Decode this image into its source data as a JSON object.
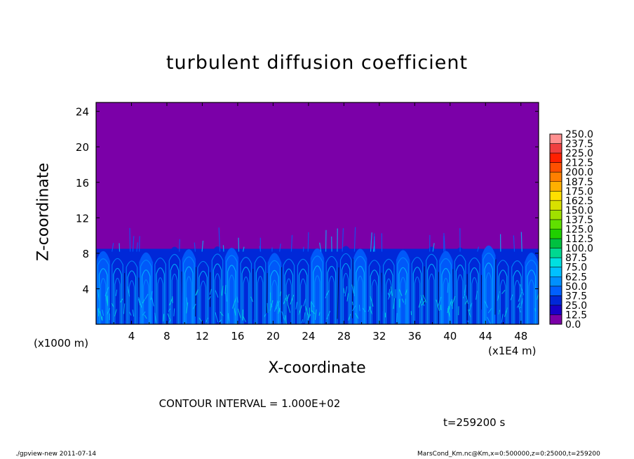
{
  "chart_data": {
    "type": "heatmap",
    "title": "turbulent diffusion coefficient",
    "xlabel": "X-coordinate",
    "ylabel": "Z-coordinate",
    "x_unit_left": "(x1000 m)",
    "x_unit_right": "(x1E4 m)",
    "xlim": [
      0,
      50
    ],
    "ylim": [
      0,
      25
    ],
    "x_ticks": [
      4,
      8,
      12,
      16,
      20,
      24,
      28,
      32,
      36,
      40,
      44,
      48
    ],
    "y_ticks": [
      4,
      8,
      12,
      16,
      20,
      24
    ],
    "colorbar_levels": [
      "0.0",
      "12.5",
      "25.0",
      "37.5",
      "50.0",
      "62.5",
      "75.0",
      "87.5",
      "100.0",
      "112.5",
      "125.0",
      "137.5",
      "150.0",
      "162.5",
      "175.0",
      "187.5",
      "200.0",
      "212.5",
      "225.0",
      "237.5",
      "250.0"
    ],
    "colorbar_colors": [
      "#7b00a8",
      "#1800c8",
      "#0028d8",
      "#0060ff",
      "#0090ff",
      "#00c0ff",
      "#00e0e0",
      "#00d890",
      "#00c040",
      "#20d000",
      "#60e000",
      "#a0e000",
      "#d8e000",
      "#ffe000",
      "#ffb000",
      "#ff8000",
      "#ff5000",
      "#ff2000",
      "#f04040",
      "#ff9090"
    ],
    "background_value": 0.0,
    "turbulent_layer_top_z": 8.5,
    "contour_interval": "CONTOUR INTERVAL = 1.000E+02",
    "time": "t=259200 s"
  },
  "footer": {
    "left": "./gpview-new   2011-07-14",
    "right": "MarsCond_Km.nc@Km,x=0:500000,z=0:25000,t=259200"
  }
}
